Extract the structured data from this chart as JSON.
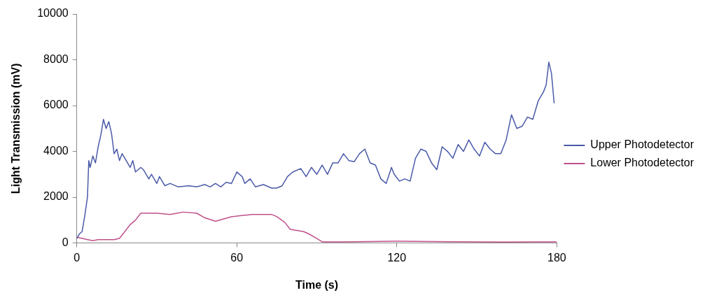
{
  "chart_data": {
    "type": "line",
    "xlabel": "Time (s)",
    "ylabel": "Light Transmission (mV)",
    "xlim": [
      0,
      180
    ],
    "xticks": [
      0,
      60,
      120,
      180
    ],
    "ylim": [
      0,
      10000
    ],
    "yticks": [
      0,
      2000,
      4000,
      6000,
      8000,
      10000
    ],
    "grid": false,
    "legend": "right",
    "marker": "none",
    "line_style": "solid",
    "series": [
      {
        "name": "Upper Photodetector",
        "color": "#4a5aa8",
        "x": [
          0,
          1,
          2,
          3,
          4,
          4.5,
          5,
          6,
          7,
          8,
          9,
          10,
          11,
          12,
          13,
          14,
          15,
          16,
          17,
          18,
          20,
          21,
          22,
          24,
          25,
          27,
          28,
          30,
          31,
          33,
          35,
          38,
          42,
          45,
          48,
          50,
          52,
          54,
          56,
          58,
          60,
          62,
          63,
          65,
          67,
          70,
          73,
          75,
          77,
          79,
          81,
          84,
          86,
          88,
          90,
          92,
          94,
          96,
          98,
          100,
          102,
          104,
          106,
          108,
          110,
          112,
          114,
          116,
          118,
          119,
          121,
          123,
          125,
          127,
          129,
          131,
          133,
          135,
          137,
          139,
          141,
          143,
          145,
          147,
          149,
          151,
          153,
          155,
          157,
          159,
          161,
          163,
          165,
          167,
          169,
          171,
          173,
          175,
          176,
          177,
          178,
          179
        ],
        "values": [
          200,
          400,
          500,
          1200,
          2000,
          3600,
          3300,
          3800,
          3500,
          4200,
          4700,
          5400,
          5000,
          5300,
          4800,
          3900,
          4100,
          3600,
          3900,
          3700,
          3300,
          3600,
          3100,
          3300,
          3200,
          2800,
          3000,
          2600,
          2900,
          2500,
          2600,
          2450,
          2500,
          2450,
          2550,
          2450,
          2600,
          2450,
          2650,
          2600,
          3100,
          2900,
          2600,
          2800,
          2450,
          2550,
          2400,
          2400,
          2500,
          2900,
          3100,
          3250,
          2900,
          3300,
          3000,
          3400,
          3000,
          3500,
          3500,
          3900,
          3600,
          3550,
          3900,
          4100,
          3500,
          3400,
          2800,
          2600,
          3300,
          3000,
          2700,
          2800,
          2700,
          3700,
          4100,
          4000,
          3500,
          3200,
          4200,
          4000,
          3700,
          4300,
          4000,
          4500,
          4100,
          3800,
          4400,
          4100,
          3900,
          3900,
          4500,
          5600,
          5000,
          5100,
          5500,
          5400,
          6200,
          6600,
          6900,
          7900,
          7400,
          6100
        ]
      },
      {
        "name": "Lower Photodetector",
        "color": "#c0508a",
        "x": [
          0,
          2,
          4,
          6,
          8,
          10,
          14,
          16,
          18,
          20,
          22,
          24,
          26,
          30,
          35,
          40,
          45,
          48,
          52,
          55,
          58,
          62,
          66,
          70,
          73,
          75,
          78,
          80,
          85,
          87,
          90,
          92,
          100,
          120,
          140,
          160,
          180
        ],
        "values": [
          250,
          200,
          150,
          100,
          150,
          150,
          150,
          200,
          500,
          800,
          1000,
          1300,
          1300,
          1300,
          1250,
          1350,
          1300,
          1100,
          950,
          1050,
          1150,
          1200,
          1250,
          1250,
          1250,
          1150,
          900,
          600,
          500,
          400,
          200,
          50,
          50,
          80,
          60,
          40,
          50
        ]
      }
    ]
  }
}
